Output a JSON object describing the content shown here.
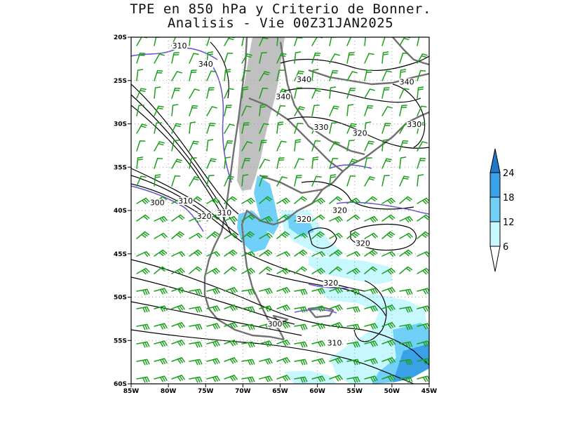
{
  "title": {
    "line1": "TPE en 850 hPa y Criterio de Bonner.",
    "line2": "Analisis - Vie 00Z31JAN2025"
  },
  "axes": {
    "lat_labels": [
      "20S",
      "25S",
      "30S",
      "35S",
      "40S",
      "45S",
      "50S",
      "55S",
      "60S"
    ],
    "lon_labels": [
      "85W",
      "80W",
      "75W",
      "70W",
      "65W",
      "60W",
      "55W",
      "50W",
      "45W"
    ],
    "lat_range": [
      -60,
      -20
    ],
    "lon_range": [
      -85,
      -45
    ]
  },
  "contour_labels": [
    {
      "text": "310",
      "lon": -78.5,
      "lat": -21.2
    },
    {
      "text": "340",
      "lon": -75.0,
      "lat": -23.3,
      "color": "#6a5acd"
    },
    {
      "text": "340",
      "lon": -64.6,
      "lat": -27.1
    },
    {
      "text": "340",
      "lon": -61.8,
      "lat": -25.1
    },
    {
      "text": "340",
      "lon": -48.0,
      "lat": -25.4
    },
    {
      "text": "330",
      "lon": -59.5,
      "lat": -30.6
    },
    {
      "text": "320",
      "lon": -54.3,
      "lat": -31.3
    },
    {
      "text": "330",
      "lon": -47.0,
      "lat": -30.3
    },
    {
      "text": "300",
      "lon": -81.5,
      "lat": -39.3
    },
    {
      "text": "310",
      "lon": -77.7,
      "lat": -39.1
    },
    {
      "text": "320",
      "lon": -75.2,
      "lat": -40.9
    },
    {
      "text": "310",
      "lon": -72.5,
      "lat": -40.5
    },
    {
      "text": "320",
      "lon": -57.0,
      "lat": -40.2
    },
    {
      "text": "320",
      "lon": -61.8,
      "lat": -41.2
    },
    {
      "text": "320",
      "lon": -53.9,
      "lat": -44.0
    },
    {
      "text": "320",
      "lon": -58.2,
      "lat": -48.6
    },
    {
      "text": "300",
      "lon": -65.7,
      "lat": -53.3
    },
    {
      "text": "310",
      "lon": -57.7,
      "lat": -55.5
    }
  ],
  "colorbar": {
    "levels": [
      "6",
      "12",
      "18",
      "24"
    ],
    "colors": [
      "#ffffff",
      "#c8f8ff",
      "#70d0f8",
      "#3aa0e8",
      "#1f78c8"
    ]
  },
  "colors": {
    "contour": "#000000",
    "highlight_contour": "#6a5acd",
    "wind_barbs": "#1aa01a",
    "coastline": "#707070",
    "terrain_mask": "#c0c0c0",
    "grid": "#a0a0a0"
  }
}
